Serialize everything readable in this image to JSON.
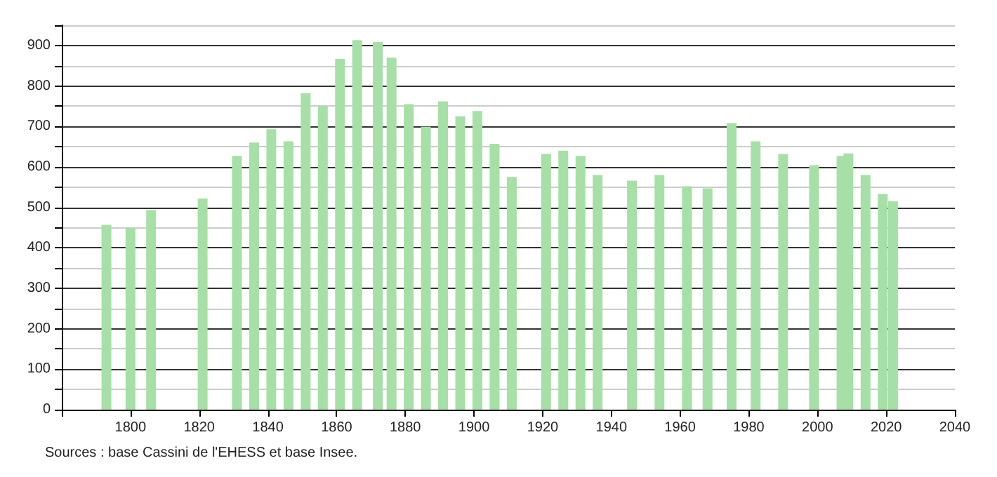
{
  "chart_data": {
    "type": "bar",
    "x": [
      1793,
      1800,
      1806,
      1821,
      1831,
      1836,
      1841,
      1846,
      1851,
      1856,
      1861,
      1866,
      1872,
      1876,
      1881,
      1886,
      1891,
      1896,
      1901,
      1906,
      1911,
      1921,
      1926,
      1931,
      1936,
      1946,
      1954,
      1962,
      1968,
      1975,
      1982,
      1990,
      1999,
      2007,
      2009,
      2014,
      2019,
      2022
    ],
    "values": [
      457,
      449,
      493,
      522,
      627,
      660,
      693,
      663,
      782,
      750,
      867,
      913,
      909,
      870,
      755,
      699,
      762,
      725,
      738,
      657,
      575,
      632,
      640,
      627,
      580,
      566,
      580,
      552,
      547,
      708,
      663,
      632,
      604,
      627,
      633,
      580,
      533,
      515
    ],
    "color": "#a6e0a6",
    "xlim": [
      1780,
      2040
    ],
    "xticks": [
      {
        "value": 1780,
        "label": null
      },
      1800,
      1820,
      1840,
      1860,
      1880,
      1900,
      1920,
      1940,
      1960,
      1980,
      2000,
      2020,
      2040
    ],
    "ylim": [
      0,
      950
    ],
    "yticks": [
      0,
      {
        "value": 50,
        "label": null
      },
      100,
      {
        "value": 150,
        "label": null
      },
      200,
      {
        "value": 250,
        "label": null
      },
      300,
      {
        "value": 350,
        "label": null
      },
      400,
      {
        "value": 450,
        "label": null
      },
      500,
      {
        "value": 550,
        "label": null
      },
      600,
      {
        "value": 650,
        "label": null
      },
      700,
      {
        "value": 750,
        "label": null
      },
      800,
      {
        "value": 850,
        "label": null
      },
      900,
      {
        "value": 950,
        "label": null
      }
    ],
    "grid": "y",
    "annotations": [
      "Sources : base Cassini de l'EHESS et base Insee."
    ]
  }
}
